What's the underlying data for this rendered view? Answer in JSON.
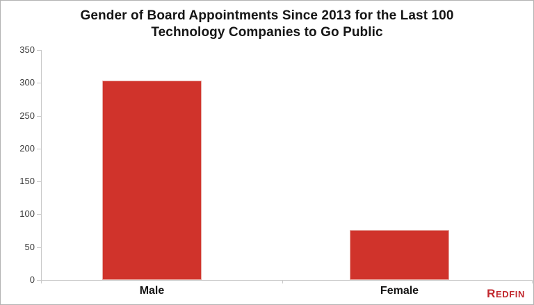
{
  "chart_data": {
    "type": "bar",
    "title": "Gender of Board Appointments Since 2013 for the Last 100 Technology Companies to Go Public",
    "title_lines": [
      "Gender of Board Appointments Since 2013 for the Last 100",
      "Technology Companies to Go Public"
    ],
    "categories": [
      "Male",
      "Female"
    ],
    "values": [
      303,
      76
    ],
    "ylim": [
      0,
      350
    ],
    "yticks": [
      0,
      50,
      100,
      150,
      200,
      250,
      300,
      350
    ],
    "xlabel": "",
    "ylabel": "",
    "grid": false,
    "legend_position": "none",
    "bar_color": "#d0332b",
    "bar_edge_color": "#e6aea8",
    "axis_color": "#c9c9c9",
    "text_color": "#151515"
  },
  "branding": {
    "logo_first": "R",
    "logo_rest": "EDFIN",
    "logo_color": "#c1272d"
  }
}
